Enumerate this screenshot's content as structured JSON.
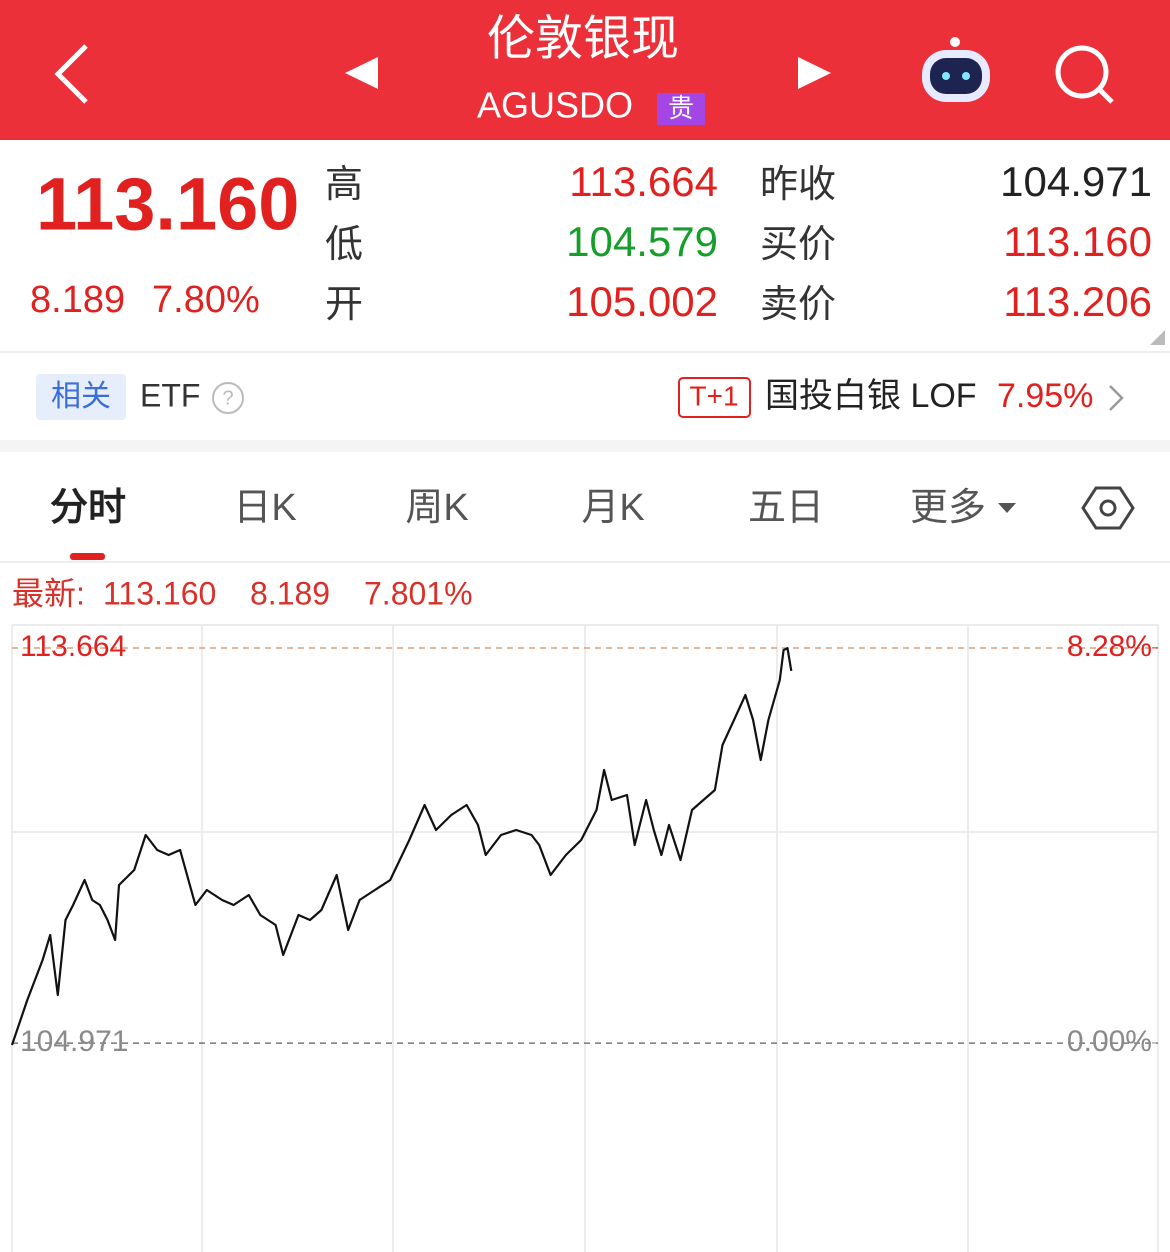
{
  "header": {
    "title": "伦敦银现",
    "code": "AGUSDO",
    "badge": "贵"
  },
  "quote": {
    "price": "113.160",
    "change": "8.189",
    "change_pct": "7.80%",
    "left_fields": [
      {
        "label": "高",
        "value": "113.664"
      },
      {
        "label": "低",
        "value": "104.579"
      },
      {
        "label": "开",
        "value": "105.002"
      }
    ],
    "right_fields": [
      {
        "label": "昨收",
        "value": "104.971"
      },
      {
        "label": "买价",
        "value": "113.160"
      },
      {
        "label": "卖价",
        "value": "113.206"
      }
    ]
  },
  "related": {
    "tag": "相关",
    "label": "ETF",
    "badge": "T+1",
    "fund": "国投白银 LOF",
    "fund_pct": "7.95%"
  },
  "tabs": [
    "分时",
    "日K",
    "周K",
    "月K",
    "五日",
    "更多"
  ],
  "chart_data": {
    "type": "line",
    "latest": {
      "label": "最新:",
      "price": "113.160",
      "change": "8.189",
      "change_pct": "7.801%"
    },
    "x": [
      0,
      4,
      8,
      10,
      12,
      14,
      16,
      19,
      21,
      23,
      25,
      27,
      28,
      32,
      35,
      38,
      41,
      44,
      48,
      51,
      55,
      58,
      62,
      65,
      69,
      71,
      75,
      78,
      81,
      85,
      88,
      91,
      95,
      99,
      104,
      108,
      111,
      115,
      119,
      122,
      124,
      128,
      132,
      136,
      138,
      141,
      145,
      149,
      153,
      155,
      157,
      161,
      163,
      166,
      168,
      170,
      172,
      175,
      178,
      181,
      184,
      186,
      189,
      192,
      194,
      196,
      198,
      201,
      202,
      203,
      204
    ],
    "xlim": [
      0,
      300
    ],
    "series": [
      {
        "color": "#111111",
        "values": [
          104.93,
          105.92,
          106.8,
          107.35,
          106.03,
          107.68,
          108.01,
          108.56,
          108.12,
          108.01,
          107.68,
          107.24,
          108.45,
          108.78,
          109.55,
          109.22,
          109.11,
          109.22,
          108.01,
          108.34,
          108.12,
          108.01,
          108.23,
          107.79,
          107.57,
          106.91,
          107.79,
          107.68,
          107.9,
          108.67,
          107.46,
          108.12,
          108.34,
          108.56,
          109.44,
          110.21,
          109.66,
          109.99,
          110.21,
          109.77,
          109.11,
          109.55,
          109.66,
          109.55,
          109.33,
          108.67,
          109.11,
          109.44,
          110.1,
          110.98,
          110.32,
          110.43,
          109.33,
          110.32,
          109.66,
          109.11,
          109.77,
          109.0,
          110.1,
          110.32,
          110.54,
          111.53,
          112.08,
          112.63,
          112.08,
          111.2,
          112.08,
          112.96,
          113.62,
          113.66,
          113.16
        ]
      }
    ],
    "ylim": [
      100.42,
      114.17
    ],
    "yticks": [
      113.664,
      104.971
    ],
    "y2lim": [
      -4.34,
      8.76
    ],
    "y2ticks": [
      {
        "value": 8.28,
        "label": "8.28%"
      },
      {
        "value": 0,
        "label": "0.00%"
      }
    ],
    "tick_colors": [
      "#e0211f",
      "#8a8a8a"
    ]
  }
}
